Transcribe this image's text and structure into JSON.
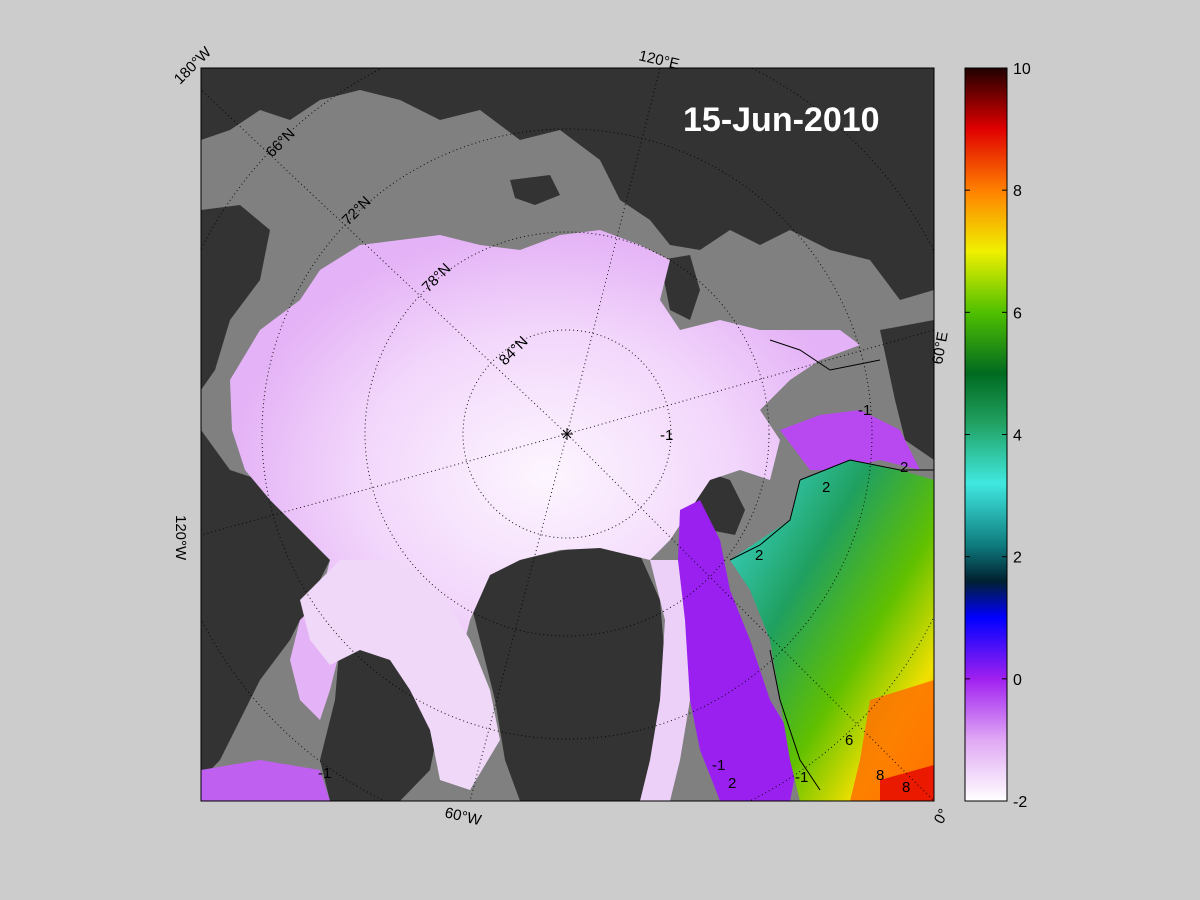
{
  "map": {
    "date_label": "15-Jun-2010",
    "longitude_labels": {
      "top_left": "180°W",
      "top": "120°E",
      "left": "120°W",
      "right": "60°E",
      "bottom": "60°W",
      "bottom_right": "0°"
    },
    "latitude_labels": [
      "66°N",
      "72°N",
      "78°N",
      "84°N"
    ],
    "contour_labels": [
      "-1",
      "-1",
      "-1",
      "2",
      "2",
      "2",
      "-1",
      "2",
      "-1",
      "6",
      "8",
      "8"
    ],
    "colors": {
      "land": "#333333",
      "missing": "#808080",
      "background": "#cccccc",
      "frame": "#000000"
    }
  },
  "colorbar": {
    "ticks": [
      "10",
      "8",
      "6",
      "4",
      "2",
      "0",
      "-2"
    ],
    "min": -2,
    "max": 10,
    "stops": [
      {
        "v": -2,
        "c": "#ffffff"
      },
      {
        "v": -1,
        "c": "#e0a8f4"
      },
      {
        "v": 0,
        "c": "#a020f0"
      },
      {
        "v": 1,
        "c": "#0000ff"
      },
      {
        "v": 1.6,
        "c": "#002030"
      },
      {
        "v": 2.2,
        "c": "#0f7d80"
      },
      {
        "v": 3.2,
        "c": "#40e8e0"
      },
      {
        "v": 4.2,
        "c": "#20a060"
      },
      {
        "v": 5,
        "c": "#006a20"
      },
      {
        "v": 6,
        "c": "#50c000"
      },
      {
        "v": 7,
        "c": "#f0f000"
      },
      {
        "v": 8,
        "c": "#ff8000"
      },
      {
        "v": 9,
        "c": "#e00000"
      },
      {
        "v": 10,
        "c": "#200000"
      }
    ]
  }
}
